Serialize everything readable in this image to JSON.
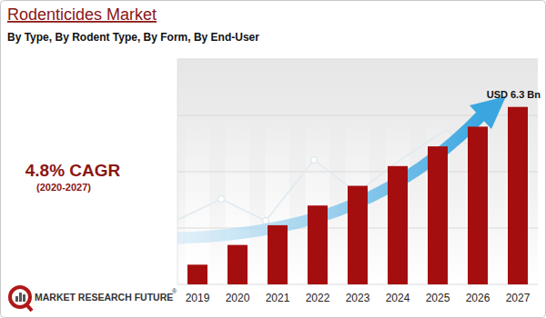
{
  "chart_data": {
    "type": "bar",
    "title": "Rodenticides Market",
    "subtitle": "By Type, By Rodent Type, By Form, By End-User",
    "cagr": "4.8% CAGR",
    "cagr_period": "(2020-2027)",
    "annotation": "USD 6.3 Bn",
    "source": "MARKET RESEARCH FUTURE",
    "source_mark": "®",
    "categories": [
      "2019",
      "2020",
      "2021",
      "2022",
      "2023",
      "2024",
      "2025",
      "2026",
      "2027"
    ],
    "values": [
      0.7,
      1.4,
      2.1,
      2.8,
      3.5,
      4.2,
      4.9,
      5.6,
      6.3
    ],
    "color": "#a50e0e",
    "ylim": [
      0,
      8
    ],
    "yticks": [
      0,
      2,
      4,
      6,
      8
    ],
    "grid": true,
    "tick_labels": "x"
  }
}
